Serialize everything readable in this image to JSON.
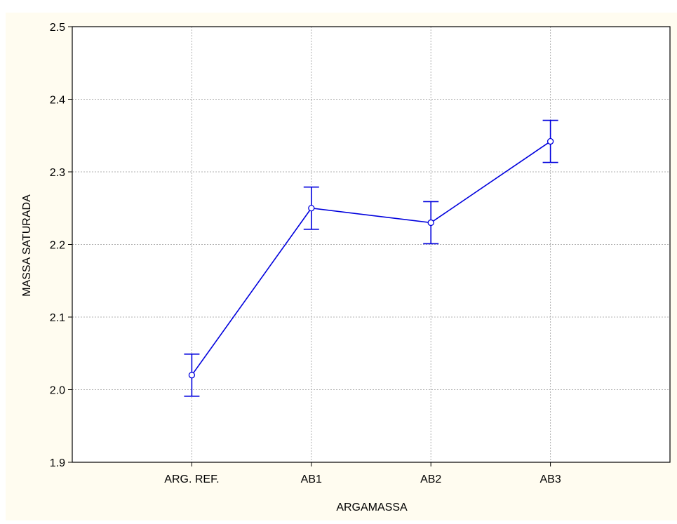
{
  "chart_data": {
    "type": "line",
    "title": "",
    "xlabel": "ARGAMASSA",
    "ylabel": "MASSA SATURADA",
    "categories": [
      "ARG. REF.",
      "AB1",
      "AB2",
      "AB3"
    ],
    "series": [
      {
        "values": [
          2.02,
          2.25,
          2.23,
          2.342
        ],
        "error_low": [
          1.991,
          2.221,
          2.201,
          2.313
        ],
        "error_high": [
          2.049,
          2.279,
          2.259,
          2.371
        ]
      }
    ],
    "ylim": [
      1.9,
      2.5
    ],
    "yticks": [
      "1.9",
      "2.0",
      "2.1",
      "2.2",
      "2.3",
      "2.4",
      "2.5"
    ],
    "grid": true,
    "colors": {
      "line": "#0000dd",
      "background": "#fffcf0",
      "plot_bg": "#ffffff"
    }
  }
}
